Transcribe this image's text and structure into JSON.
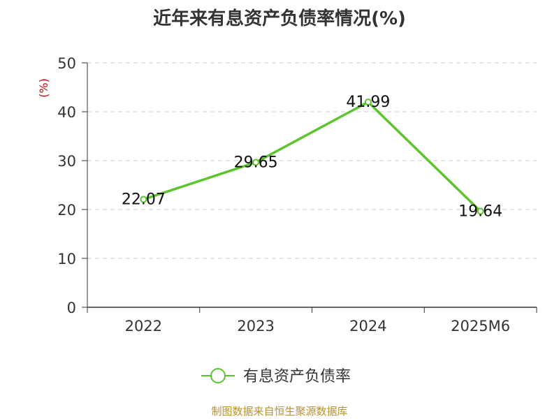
{
  "chart_data": {
    "type": "line",
    "title": "近年来有息资产负债率情况(%)",
    "ylabel": "(%)",
    "categories": [
      "2022",
      "2023",
      "2024",
      "2025M6"
    ],
    "series": [
      {
        "name": "有息资产负债率",
        "values": [
          22.07,
          29.65,
          41.99,
          19.64
        ]
      }
    ],
    "data_labels": [
      "22.07",
      "29.65",
      "41.99",
      "19.64"
    ],
    "y_ticks": [
      "0",
      "10",
      "20",
      "30",
      "40",
      "50"
    ],
    "ylim": [
      0,
      50
    ],
    "grid": "horizontal-dashed",
    "legend": "bottom-center",
    "source": "制图数据来自恒生聚源数据库"
  },
  "colors": {
    "series": "#5cc42d",
    "ylabel": "#d00000",
    "source": "#b8912f",
    "axis": "#333333",
    "grid": "#cccccc"
  }
}
